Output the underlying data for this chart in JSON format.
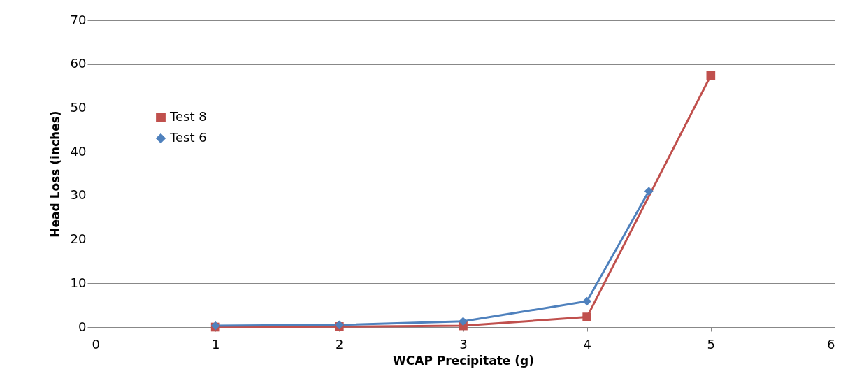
{
  "chart_data": {
    "type": "line",
    "xlabel": "WCAP Precipitate (g)",
    "ylabel": "Head Loss (inches)",
    "xlim": [
      0,
      6
    ],
    "xticks": [
      0,
      1,
      2,
      3,
      4,
      5,
      6
    ],
    "ylim": [
      0,
      70
    ],
    "yticks": [
      0,
      10,
      20,
      30,
      40,
      50,
      60,
      70
    ],
    "grid": "y",
    "legend": "left",
    "line_style": "solid",
    "series": [
      {
        "name": "Test 8",
        "color": "#c0504d",
        "marker": "square",
        "x": [
          1,
          2,
          3,
          4,
          5
        ],
        "values": [
          0,
          0.1,
          0.3,
          2.3,
          57.4
        ]
      },
      {
        "name": "Test 6",
        "color": "#4f81bd",
        "marker": "diamond",
        "x": [
          1,
          2,
          3,
          4,
          4.5
        ],
        "values": [
          0.3,
          0.5,
          1.3,
          5.9,
          31.0
        ]
      }
    ]
  }
}
